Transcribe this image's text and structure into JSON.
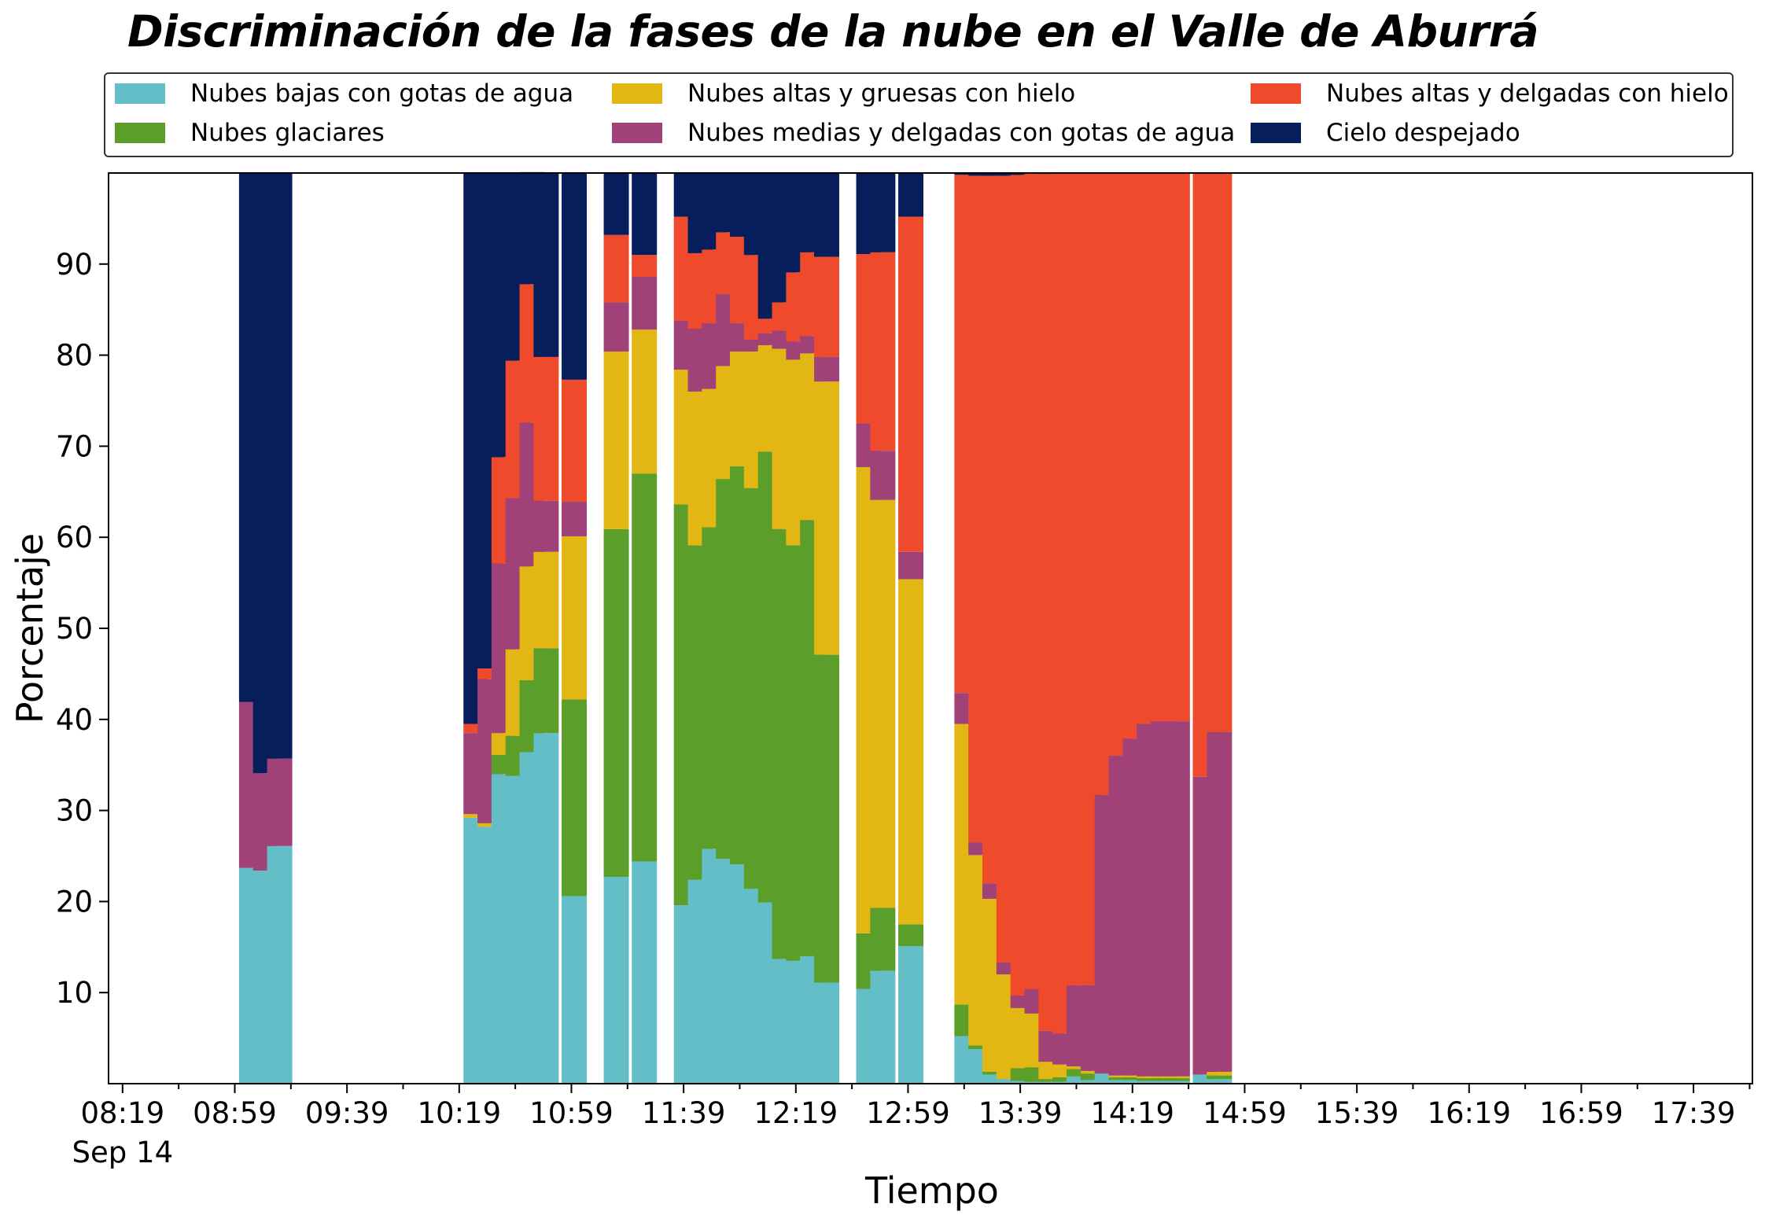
{
  "title": "Discriminación de la fases de la nube en el Valle de Aburrá",
  "chart_data": {
    "type": "bar",
    "stacked": true,
    "xlabel": "Tiempo",
    "ylabel": "Porcentaje",
    "ylim": [
      0,
      100
    ],
    "yticks": [
      10,
      20,
      30,
      40,
      50,
      60,
      70,
      80,
      90
    ],
    "xlim": [
      "08:14",
      "18:00"
    ],
    "date_label": "Sep 14",
    "xticks": [
      "08:19",
      "08:59",
      "09:39",
      "10:19",
      "10:59",
      "11:39",
      "12:19",
      "12:59",
      "13:39",
      "14:19",
      "14:59",
      "15:39",
      "16:19",
      "16:59",
      "17:39"
    ],
    "x": [
      "09:05",
      "09:10",
      "09:15",
      "10:25",
      "10:30",
      "10:35",
      "10:40",
      "10:45",
      "10:50",
      "11:00",
      "11:15",
      "11:25",
      "11:40",
      "11:45",
      "11:50",
      "11:55",
      "12:00",
      "12:05",
      "12:10",
      "12:15",
      "12:20",
      "12:25",
      "12:30",
      "12:45",
      "12:50",
      "13:00",
      "13:20",
      "13:25",
      "13:30",
      "13:35",
      "13:40",
      "13:45",
      "13:50",
      "13:55",
      "14:00",
      "14:05",
      "14:10",
      "14:15",
      "14:20",
      "14:25",
      "14:30",
      "14:35",
      "14:45",
      "14:50"
    ],
    "series": [
      {
        "name": "Nubes bajas con gotas de agua",
        "color": "#64bec8",
        "values": [
          23.7,
          23.4,
          26.1,
          29.2,
          28.2,
          34.0,
          33.8,
          36.4,
          38.5,
          20.6,
          22.7,
          24.4,
          19.6,
          22.4,
          25.8,
          24.7,
          24.1,
          21.4,
          19.9,
          13.7,
          13.5,
          14.0,
          11.1,
          10.4,
          12.4,
          15.1,
          5.2,
          3.8,
          1.0,
          0.5,
          0.3,
          0.2,
          0.2,
          0.2,
          0.8,
          0.4,
          1.1,
          0.4,
          0.4,
          0.3,
          0.3,
          0.3,
          1.0,
          0.5
        ]
      },
      {
        "name": "Nubes glaciares",
        "color": "#5c9e2a",
        "values": [
          0,
          0,
          0,
          0,
          0,
          2.1,
          4.4,
          7.9,
          9.3,
          21.6,
          38.2,
          42.6,
          44.0,
          36.7,
          35.3,
          41.7,
          43.7,
          44.0,
          49.5,
          47.2,
          45.6,
          47.9,
          36.0,
          6.1,
          6.9,
          2.4,
          3.5,
          0.4,
          0.3,
          0,
          1.4,
          1.6,
          0.3,
          0.5,
          0.8,
          0.7,
          0,
          0.3,
          0.3,
          0.3,
          0.3,
          0.3,
          0,
          0.4
        ]
      },
      {
        "name": "Nubes altas y gruesas con hielo",
        "color": "#e3b713",
        "values": [
          0,
          0,
          0,
          0.4,
          0.4,
          2.4,
          9.5,
          12.5,
          10.6,
          17.9,
          19.5,
          15.8,
          14.8,
          16.9,
          15.2,
          12.4,
          12.6,
          15.0,
          11.7,
          19.8,
          20.4,
          18.3,
          30.0,
          51.2,
          44.8,
          37.9,
          30.8,
          20.9,
          19.0,
          11.5,
          6.6,
          5.9,
          1.9,
          1.4,
          0.3,
          0.3,
          0,
          0.2,
          0.2,
          0.2,
          0.2,
          0.2,
          0,
          0.4
        ]
      },
      {
        "name": "Nubes medias y delgadas con gotas de agua",
        "color": "#a04278",
        "values": [
          18.2,
          10.7,
          9.6,
          8.9,
          15.8,
          18.6,
          16.6,
          15.8,
          5.6,
          3.8,
          5.4,
          5.8,
          5.4,
          6.9,
          7.2,
          7.9,
          3.1,
          1.3,
          1.3,
          2.0,
          2.0,
          1.9,
          2.7,
          4.8,
          5.4,
          3.0,
          3.4,
          1.4,
          1.7,
          1.3,
          1.4,
          2.7,
          3.4,
          3.4,
          8.9,
          9.4,
          30.6,
          35.1,
          37.0,
          38.7,
          39.0,
          39.0,
          32.7,
          37.3
        ]
      },
      {
        "name": "Nubes altas y delgadas con hielo",
        "color": "#ee4a2b",
        "values": [
          0,
          0,
          0,
          1.0,
          1.2,
          11.7,
          15.1,
          15.2,
          15.8,
          13.4,
          7.4,
          2.4,
          11.4,
          8.3,
          8.1,
          6.8,
          9.5,
          9.3,
          1.6,
          3.1,
          7.6,
          9.2,
          11.0,
          18.6,
          21.8,
          36.8,
          56.9,
          73.2,
          77.7,
          86.4,
          90.1,
          89.6,
          94.1,
          94.5,
          89.2,
          89.2,
          68.3,
          64.0,
          62.1,
          60.5,
          60.2,
          60.2,
          66.3,
          61.4
        ]
      },
      {
        "name": "Cielo despejado",
        "color": "#061f5c",
        "values": [
          58.1,
          65.9,
          64.3,
          60.5,
          54.4,
          31.2,
          20.6,
          12.3,
          20.2,
          22.7,
          6.8,
          9.0,
          4.8,
          8.8,
          8.4,
          6.5,
          7.0,
          9.0,
          16.0,
          14.2,
          10.9,
          8.7,
          9.2,
          8.9,
          8.7,
          4.8,
          0.2,
          0.3,
          0.3,
          0.3,
          0.2,
          0,
          0.1,
          0,
          0,
          0,
          0,
          0,
          0,
          0,
          0,
          0,
          0,
          0
        ]
      }
    ],
    "legend": {
      "placement": "top",
      "columns": 3
    }
  }
}
